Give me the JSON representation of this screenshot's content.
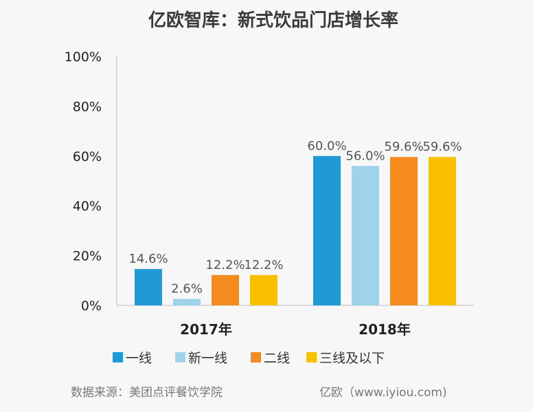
{
  "chart_data": {
    "type": "bar",
    "title": "亿欧智库：新式饮品门店增长率",
    "categories": [
      "2017年",
      "2018年"
    ],
    "series": [
      {
        "name": "一线",
        "color": "#1f9ad6",
        "values": [
          14.6,
          60.0
        ],
        "labels": [
          "14.6%",
          "60.0%"
        ]
      },
      {
        "name": "新一线",
        "color": "#9fd3ea",
        "values": [
          2.6,
          56.0
        ],
        "labels": [
          "2.6%",
          "56.0%"
        ]
      },
      {
        "name": "二线",
        "color": "#f58a1f",
        "values": [
          12.2,
          59.6
        ],
        "labels": [
          "12.2%",
          "59.6%"
        ]
      },
      {
        "name": "三线及以下",
        "color": "#f9c000",
        "values": [
          12.2,
          59.6
        ],
        "labels": [
          "12.2%",
          "59.6%"
        ]
      }
    ],
    "yticks": [
      "0%",
      "20%",
      "40%",
      "60%",
      "80%",
      "100%"
    ],
    "ylim": [
      0,
      100
    ],
    "xlabel": "",
    "ylabel": "",
    "grid": false,
    "legend_position": "bottom"
  },
  "footer": {
    "source": "数据来源：美团点评餐饮学院",
    "brand": "亿欧（www.iyiou.com)"
  }
}
